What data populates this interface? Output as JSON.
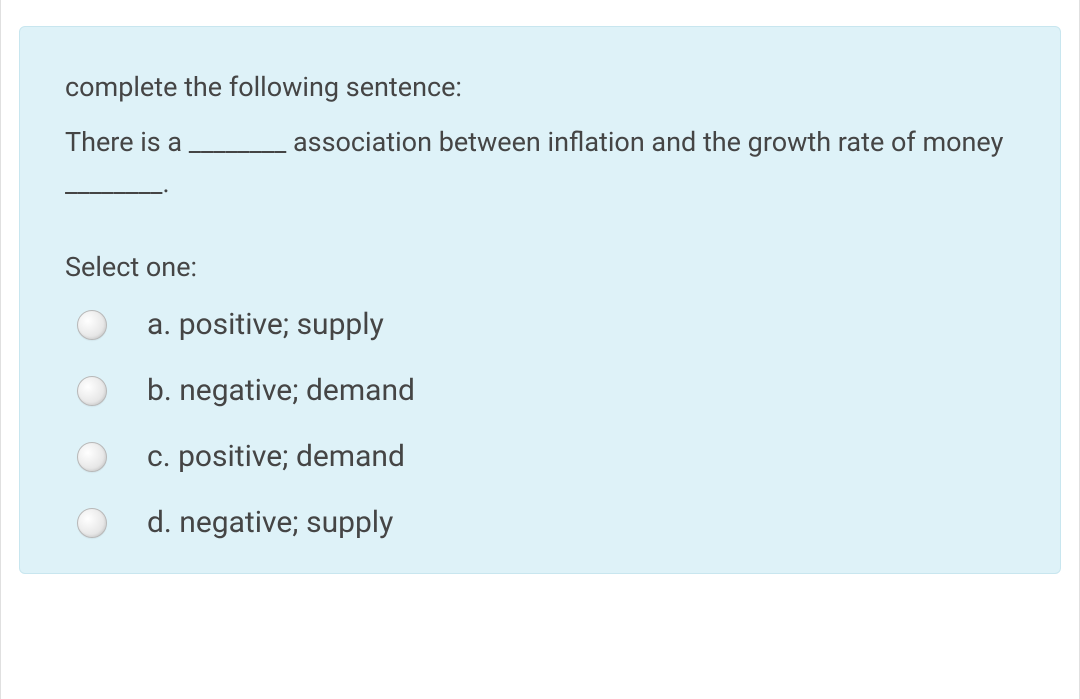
{
  "question": {
    "prompt": "complete the following sentence:",
    "sentence": "There is a ________ association between inflation and the growth rate of money ________.",
    "select_label": "Select one:",
    "options": [
      {
        "letter": "a.",
        "text": "positive; supply"
      },
      {
        "letter": "b.",
        "text": "negative; demand"
      },
      {
        "letter": "c.",
        "text": "positive; demand"
      },
      {
        "letter": "d.",
        "text": "negative; supply"
      }
    ]
  },
  "colors": {
    "card_background": "#def2f8",
    "card_border": "#c8e6ef",
    "text_color": "#454545",
    "page_background": "#ffffff",
    "radio_border": "#b8b8b8"
  },
  "typography": {
    "prompt_fontsize": 27,
    "option_fontsize": 30
  }
}
